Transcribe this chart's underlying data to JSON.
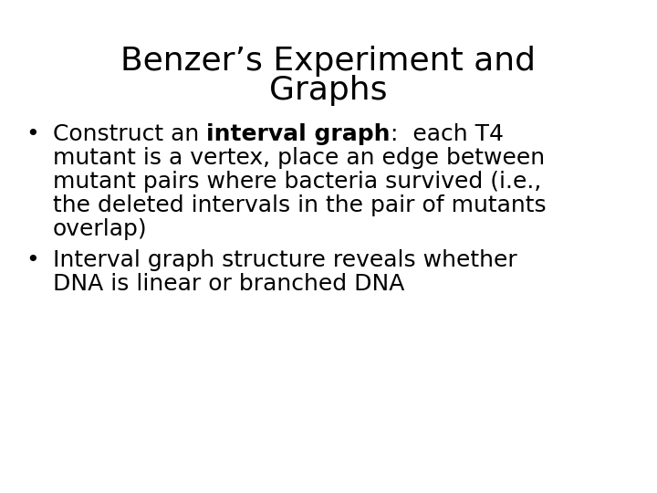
{
  "title_line1": "Benzer’s Experiment and",
  "title_line2": "Graphs",
  "bullet1_line1_pre": "Construct an ",
  "bullet1_line1_bold": "interval graph",
  "bullet1_line1_post": ":  each T4",
  "bullet1_line2": "mutant is a vertex, place an edge between",
  "bullet1_line3": "mutant pairs where bacteria survived (i.e.,",
  "bullet1_line4": "the deleted intervals in the pair of mutants",
  "bullet1_line5": "overlap)",
  "bullet2_line1": "Interval graph structure reveals whether",
  "bullet2_line2": "DNA is linear or branched DNA",
  "background_color": "#ffffff",
  "text_color": "#000000",
  "title_fontsize": 26,
  "body_fontsize": 18,
  "title_weight": "normal",
  "body_weight": "normal"
}
